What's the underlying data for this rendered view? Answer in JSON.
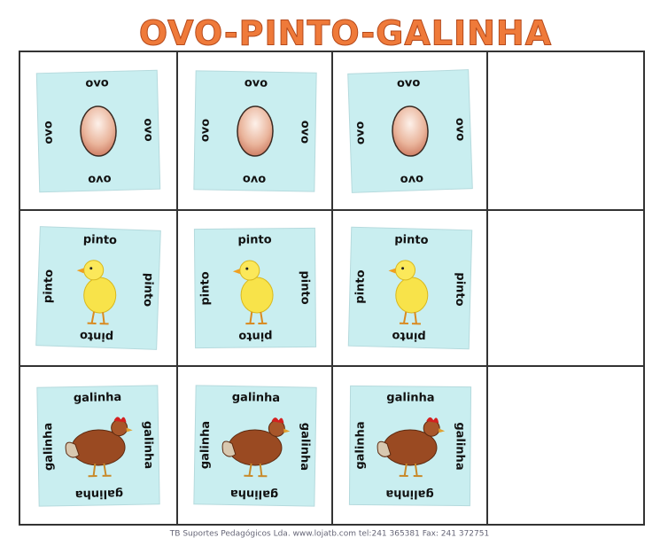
{
  "header": {
    "title": "OVO-PINTO-GALINHA"
  },
  "rows": [
    {
      "label": "ovo"
    },
    {
      "label": "pinto"
    },
    {
      "label": "galinha"
    }
  ],
  "footer": {
    "text": "TB Suportes Pedagógicos Lda.   www.lojatb.com   tel:241 365381   Fax: 241 372751"
  }
}
